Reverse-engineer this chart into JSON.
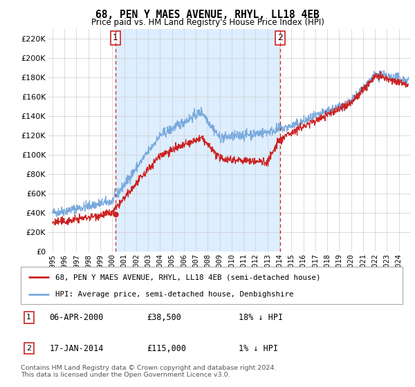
{
  "title": "68, PEN Y MAES AVENUE, RHYL, LL18 4EB",
  "subtitle": "Price paid vs. HM Land Registry's House Price Index (HPI)",
  "ylabel_ticks": [
    "£0",
    "£20K",
    "£40K",
    "£60K",
    "£80K",
    "£100K",
    "£120K",
    "£140K",
    "£160K",
    "£180K",
    "£200K",
    "£220K"
  ],
  "ytick_vals": [
    0,
    20000,
    40000,
    60000,
    80000,
    100000,
    120000,
    140000,
    160000,
    180000,
    200000,
    220000
  ],
  "ylim": [
    0,
    230000
  ],
  "xlim_left": 1994.6,
  "xlim_right": 2025.0,
  "red_line_color": "#cc2222",
  "blue_line_color": "#7aaadd",
  "bg_fill_color": "#ddeeff",
  "marker1_date": 2000.27,
  "marker1_val": 38500,
  "marker2_date": 2014.04,
  "marker2_val": 115000,
  "vline_color": "#cc2222",
  "legend_entries": [
    "68, PEN Y MAES AVENUE, RHYL, LL18 4EB (semi-detached house)",
    "HPI: Average price, semi-detached house, Denbighshire"
  ],
  "table_rows": [
    [
      "1",
      "06-APR-2000",
      "£38,500",
      "18% ↓ HPI"
    ],
    [
      "2",
      "17-JAN-2014",
      "£115,000",
      "1% ↓ HPI"
    ]
  ],
  "footnote": "Contains HM Land Registry data © Crown copyright and database right 2024.\nThis data is licensed under the Open Government Licence v3.0.",
  "background_color": "#ffffff",
  "grid_color": "#cccccc"
}
